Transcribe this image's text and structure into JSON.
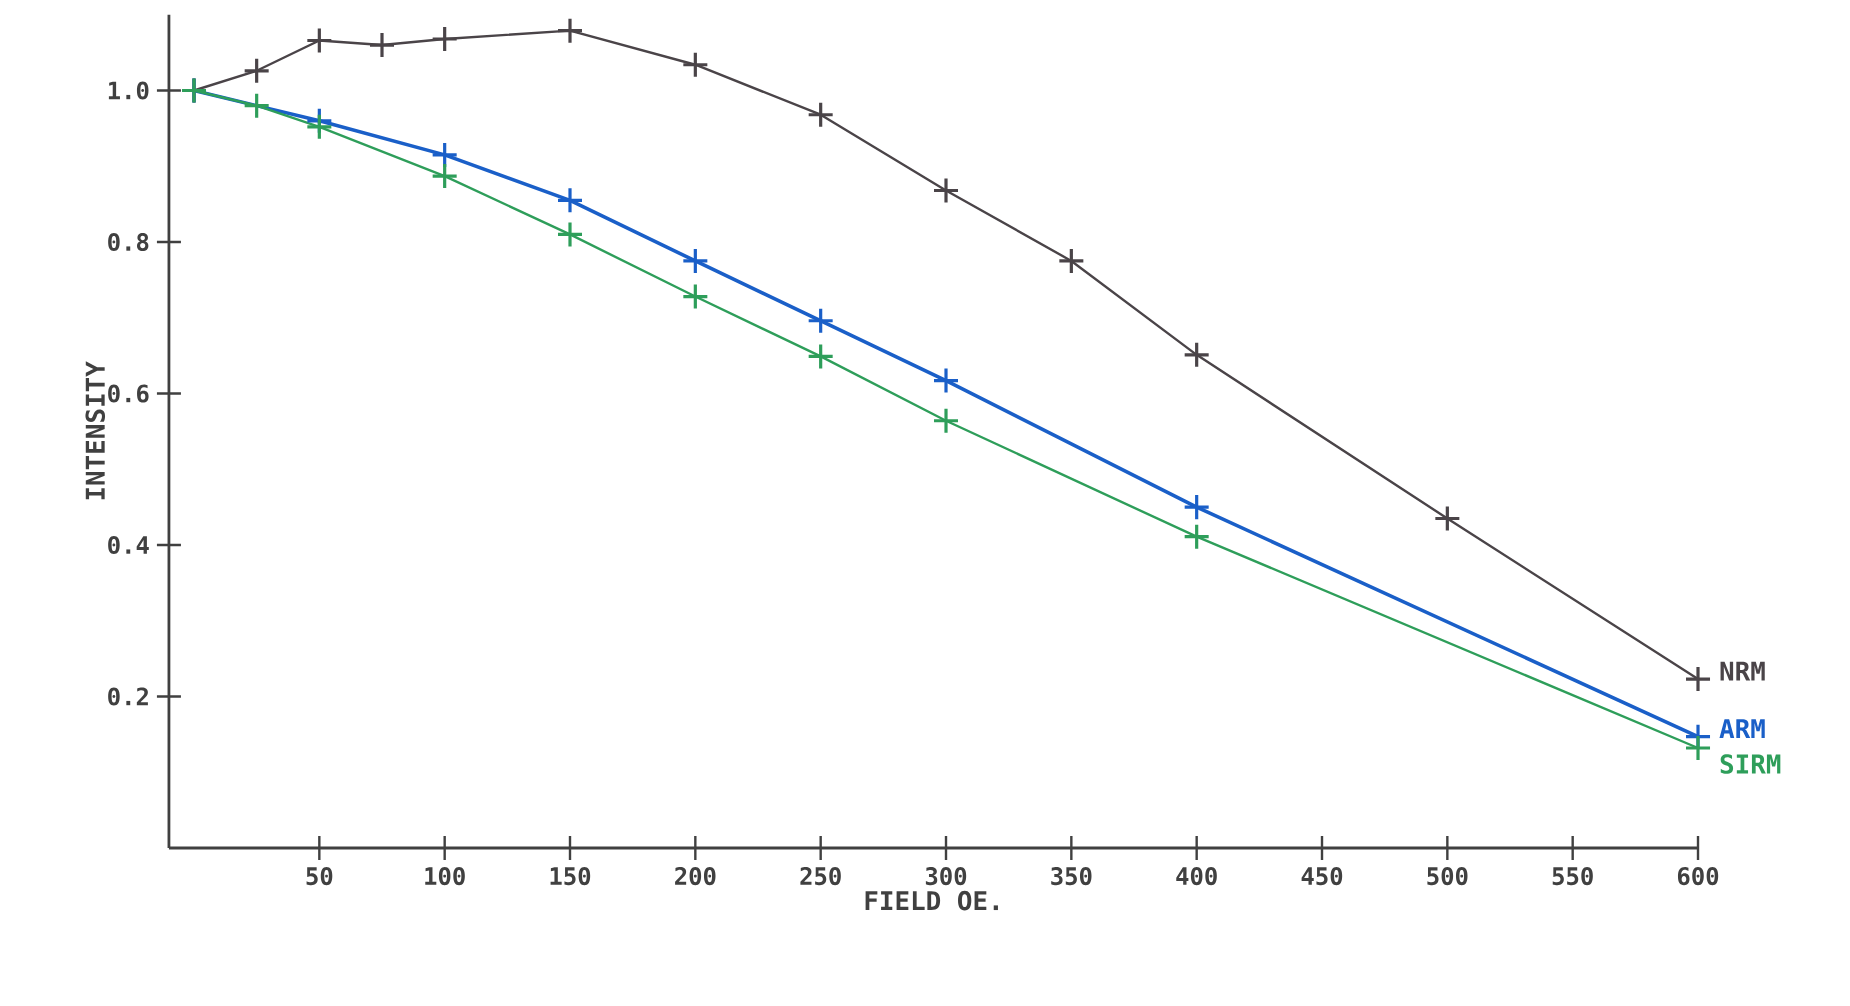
{
  "chart_data": {
    "type": "line",
    "xlabel": "FIELD OE.",
    "ylabel": "INTENSITY",
    "xlim": [
      -10,
      600
    ],
    "ylim": [
      0,
      1.1
    ],
    "xticks": [
      50,
      100,
      150,
      200,
      250,
      300,
      350,
      400,
      450,
      500,
      550,
      600
    ],
    "yticks": [
      0.2,
      0.4,
      0.6,
      0.8,
      {
        "value": 1,
        "label": "1.0"
      }
    ],
    "marker": "cross",
    "line_style": "solid",
    "grid": false,
    "legend": false,
    "series": [
      {
        "name": "NRM",
        "color": "#4a4448",
        "x": [
          0,
          25,
          50,
          75,
          100,
          150,
          200,
          250,
          300,
          350,
          400,
          500,
          600
        ],
        "values": [
          1.0,
          1.026,
          1.066,
          1.06,
          1.068,
          1.079,
          1.034,
          0.968,
          0.868,
          0.775,
          0.651,
          0.435,
          0.223
        ]
      },
      {
        "name": "ARM",
        "color": "#1a5fc8",
        "x": [
          0,
          50,
          100,
          150,
          200,
          250,
          300,
          400,
          600
        ],
        "values": [
          1.0,
          0.96,
          0.915,
          0.855,
          0.775,
          0.696,
          0.617,
          0.45,
          0.147
        ]
      },
      {
        "name": "SIRM",
        "color": "#2e9e5a",
        "x": [
          0,
          25,
          50,
          100,
          150,
          200,
          250,
          300,
          400,
          600
        ],
        "values": [
          1.0,
          0.98,
          0.952,
          0.887,
          0.81,
          0.728,
          0.649,
          0.564,
          0.411,
          0.132
        ]
      }
    ]
  }
}
